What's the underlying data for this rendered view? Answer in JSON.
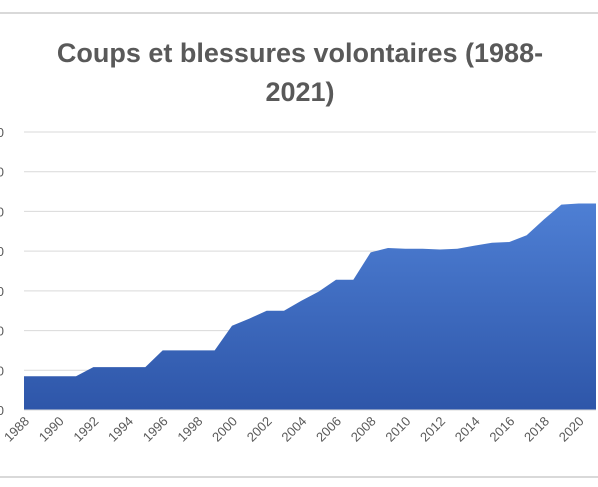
{
  "chart_data": {
    "type": "area",
    "title_line1": "Coups et blessures volontaires (1988-",
    "title_line2": "2021)",
    "x": [
      1988,
      1989,
      1990,
      1991,
      1992,
      1993,
      1994,
      1995,
      1996,
      1997,
      1998,
      1999,
      2000,
      2001,
      2002,
      2003,
      2004,
      2005,
      2006,
      2007,
      2008,
      2009,
      2010,
      2011,
      2012,
      2013,
      2014,
      2015,
      2016,
      2017,
      2018,
      2019,
      2020,
      2021
    ],
    "values": [
      0.85,
      0.85,
      0.85,
      0.85,
      1.08,
      1.08,
      1.08,
      1.08,
      1.5,
      1.5,
      1.5,
      1.5,
      2.12,
      2.3,
      2.5,
      2.5,
      2.75,
      2.98,
      3.28,
      3.28,
      3.97,
      4.08,
      4.06,
      4.06,
      4.04,
      4.06,
      4.14,
      4.21,
      4.23,
      4.4,
      4.8,
      5.17,
      5.2,
      5.2
    ],
    "x_tick_labels": [
      "1988",
      "1990",
      "1992",
      "1994",
      "1996",
      "1998",
      "2000",
      "2002",
      "2004",
      "2006",
      "2008",
      "2010",
      "2012",
      "2014",
      "2016",
      "2018",
      "2020"
    ],
    "y_tick_labels": [
      "0",
      "0",
      "0",
      "0",
      "0",
      "0",
      "0",
      "0"
    ],
    "ylim": [
      0,
      7
    ],
    "grid": true,
    "series_color": "#4472c4"
  }
}
